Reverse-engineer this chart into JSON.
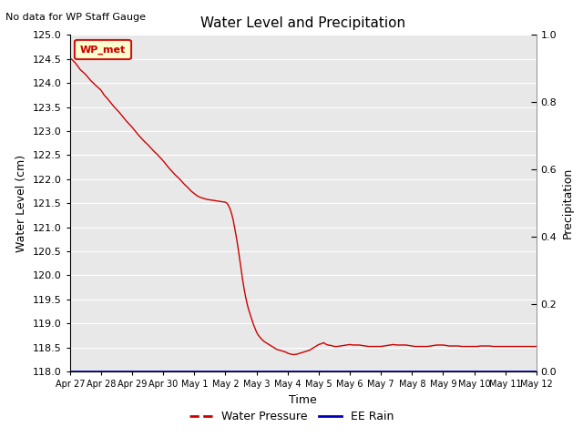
{
  "title": "Water Level and Precipitation",
  "top_left_text": "No data for WP Staff Gauge",
  "xlabel": "Time",
  "ylabel_left": "Water Level (cm)",
  "ylabel_right": "Precipitation",
  "ylim_left": [
    118.0,
    125.0
  ],
  "ylim_right": [
    0.0,
    1.0
  ],
  "yticks_left": [
    118.0,
    118.5,
    119.0,
    119.5,
    120.0,
    120.5,
    121.0,
    121.5,
    122.0,
    122.5,
    123.0,
    123.5,
    124.0,
    124.5,
    125.0
  ],
  "yticks_right": [
    0.0,
    0.2,
    0.4,
    0.6,
    0.8,
    1.0
  ],
  "background_color": "#e8e8e8",
  "fig_background": "#f0f0f0",
  "line_color_water": "#cc0000",
  "line_color_rain": "#0000bb",
  "legend_box_label": "WP_met",
  "legend_box_bg": "#ffffcc",
  "legend_box_edge": "#cc0000",
  "water_pressure_label": "Water Pressure",
  "ee_rain_label": "EE Rain",
  "water_level_data": [
    [
      0,
      124.52
    ],
    [
      0.08,
      124.48
    ],
    [
      0.17,
      124.42
    ],
    [
      0.25,
      124.35
    ],
    [
      0.33,
      124.28
    ],
    [
      0.5,
      124.18
    ],
    [
      0.67,
      124.05
    ],
    [
      0.83,
      123.95
    ],
    [
      1.0,
      123.85
    ],
    [
      1.1,
      123.75
    ],
    [
      1.2,
      123.68
    ],
    [
      1.3,
      123.6
    ],
    [
      1.4,
      123.52
    ],
    [
      1.5,
      123.45
    ],
    [
      1.6,
      123.38
    ],
    [
      1.7,
      123.3
    ],
    [
      1.8,
      123.22
    ],
    [
      1.9,
      123.15
    ],
    [
      2.0,
      123.08
    ],
    [
      2.1,
      123.0
    ],
    [
      2.2,
      122.92
    ],
    [
      2.3,
      122.85
    ],
    [
      2.4,
      122.78
    ],
    [
      2.5,
      122.72
    ],
    [
      2.6,
      122.65
    ],
    [
      2.7,
      122.58
    ],
    [
      2.8,
      122.52
    ],
    [
      2.9,
      122.45
    ],
    [
      3.0,
      122.38
    ],
    [
      3.1,
      122.3
    ],
    [
      3.2,
      122.22
    ],
    [
      3.3,
      122.15
    ],
    [
      3.4,
      122.08
    ],
    [
      3.5,
      122.02
    ],
    [
      3.6,
      121.95
    ],
    [
      3.7,
      121.88
    ],
    [
      3.8,
      121.82
    ],
    [
      3.9,
      121.75
    ],
    [
      4.0,
      121.7
    ],
    [
      4.1,
      121.65
    ],
    [
      4.2,
      121.62
    ],
    [
      4.3,
      121.6
    ],
    [
      4.4,
      121.58
    ],
    [
      4.5,
      121.57
    ],
    [
      4.6,
      121.56
    ],
    [
      4.7,
      121.55
    ],
    [
      4.8,
      121.54
    ],
    [
      4.9,
      121.53
    ],
    [
      5.0,
      121.52
    ],
    [
      5.05,
      121.5
    ],
    [
      5.1,
      121.45
    ],
    [
      5.15,
      121.38
    ],
    [
      5.2,
      121.28
    ],
    [
      5.25,
      121.15
    ],
    [
      5.3,
      120.98
    ],
    [
      5.35,
      120.8
    ],
    [
      5.4,
      120.6
    ],
    [
      5.45,
      120.38
    ],
    [
      5.5,
      120.15
    ],
    [
      5.55,
      119.92
    ],
    [
      5.6,
      119.72
    ],
    [
      5.65,
      119.55
    ],
    [
      5.7,
      119.4
    ],
    [
      5.75,
      119.28
    ],
    [
      5.8,
      119.18
    ],
    [
      5.85,
      119.08
    ],
    [
      5.9,
      118.98
    ],
    [
      5.95,
      118.9
    ],
    [
      6.0,
      118.82
    ],
    [
      6.05,
      118.76
    ],
    [
      6.1,
      118.72
    ],
    [
      6.15,
      118.68
    ],
    [
      6.2,
      118.65
    ],
    [
      6.25,
      118.62
    ],
    [
      6.3,
      118.6
    ],
    [
      6.35,
      118.58
    ],
    [
      6.4,
      118.56
    ],
    [
      6.45,
      118.54
    ],
    [
      6.5,
      118.52
    ],
    [
      6.55,
      118.5
    ],
    [
      6.6,
      118.48
    ],
    [
      6.65,
      118.46
    ],
    [
      6.7,
      118.45
    ],
    [
      6.75,
      118.44
    ],
    [
      6.8,
      118.43
    ],
    [
      6.85,
      118.42
    ],
    [
      6.9,
      118.41
    ],
    [
      6.95,
      118.4
    ],
    [
      7.0,
      118.38
    ],
    [
      7.1,
      118.36
    ],
    [
      7.2,
      118.35
    ],
    [
      7.3,
      118.36
    ],
    [
      7.4,
      118.38
    ],
    [
      7.5,
      118.4
    ],
    [
      7.6,
      118.42
    ],
    [
      7.7,
      118.44
    ],
    [
      7.8,
      118.48
    ],
    [
      7.9,
      118.52
    ],
    [
      8.0,
      118.56
    ],
    [
      8.1,
      118.58
    ],
    [
      8.15,
      118.6
    ],
    [
      8.2,
      118.58
    ],
    [
      8.25,
      118.56
    ],
    [
      8.3,
      118.55
    ],
    [
      8.4,
      118.54
    ],
    [
      8.5,
      118.52
    ],
    [
      8.6,
      118.52
    ],
    [
      8.7,
      118.53
    ],
    [
      8.8,
      118.54
    ],
    [
      8.9,
      118.55
    ],
    [
      9.0,
      118.56
    ],
    [
      9.1,
      118.55
    ],
    [
      9.2,
      118.55
    ],
    [
      9.3,
      118.55
    ],
    [
      9.4,
      118.54
    ],
    [
      9.5,
      118.53
    ],
    [
      9.6,
      118.52
    ],
    [
      9.7,
      118.52
    ],
    [
      9.8,
      118.52
    ],
    [
      9.9,
      118.52
    ],
    [
      10.0,
      118.52
    ],
    [
      10.1,
      118.53
    ],
    [
      10.2,
      118.54
    ],
    [
      10.3,
      118.55
    ],
    [
      10.4,
      118.56
    ],
    [
      10.5,
      118.55
    ],
    [
      10.6,
      118.55
    ],
    [
      10.7,
      118.55
    ],
    [
      10.8,
      118.55
    ],
    [
      10.9,
      118.54
    ],
    [
      11.0,
      118.53
    ],
    [
      11.1,
      118.52
    ],
    [
      11.2,
      118.52
    ],
    [
      11.3,
      118.52
    ],
    [
      11.4,
      118.52
    ],
    [
      11.5,
      118.52
    ],
    [
      11.6,
      118.53
    ],
    [
      11.7,
      118.54
    ],
    [
      11.8,
      118.55
    ],
    [
      11.9,
      118.55
    ],
    [
      12.0,
      118.55
    ],
    [
      12.1,
      118.54
    ],
    [
      12.2,
      118.53
    ],
    [
      12.3,
      118.53
    ],
    [
      12.4,
      118.53
    ],
    [
      12.5,
      118.53
    ],
    [
      12.6,
      118.52
    ],
    [
      12.7,
      118.52
    ],
    [
      12.8,
      118.52
    ],
    [
      12.9,
      118.52
    ],
    [
      13.0,
      118.52
    ],
    [
      13.1,
      118.52
    ],
    [
      13.2,
      118.53
    ],
    [
      13.3,
      118.53
    ],
    [
      13.4,
      118.53
    ],
    [
      13.5,
      118.53
    ],
    [
      13.6,
      118.52
    ],
    [
      13.7,
      118.52
    ],
    [
      13.8,
      118.52
    ],
    [
      13.9,
      118.52
    ],
    [
      14.0,
      118.52
    ],
    [
      14.2,
      118.52
    ],
    [
      14.4,
      118.52
    ],
    [
      14.6,
      118.52
    ],
    [
      14.8,
      118.52
    ],
    [
      15.0,
      118.52
    ]
  ],
  "xtick_labels": [
    "Apr 27",
    "Apr 28",
    "Apr 29",
    "Apr 30",
    "May 1",
    "May 2",
    "May 3",
    "May 4",
    "May 5",
    "May 6",
    "May 7",
    "May 8",
    "May 9",
    "May 10",
    "May 11",
    "May 12"
  ],
  "xtick_positions": [
    0,
    1,
    2,
    3,
    4,
    5,
    6,
    7,
    8,
    9,
    10,
    11,
    12,
    13,
    14,
    15
  ]
}
